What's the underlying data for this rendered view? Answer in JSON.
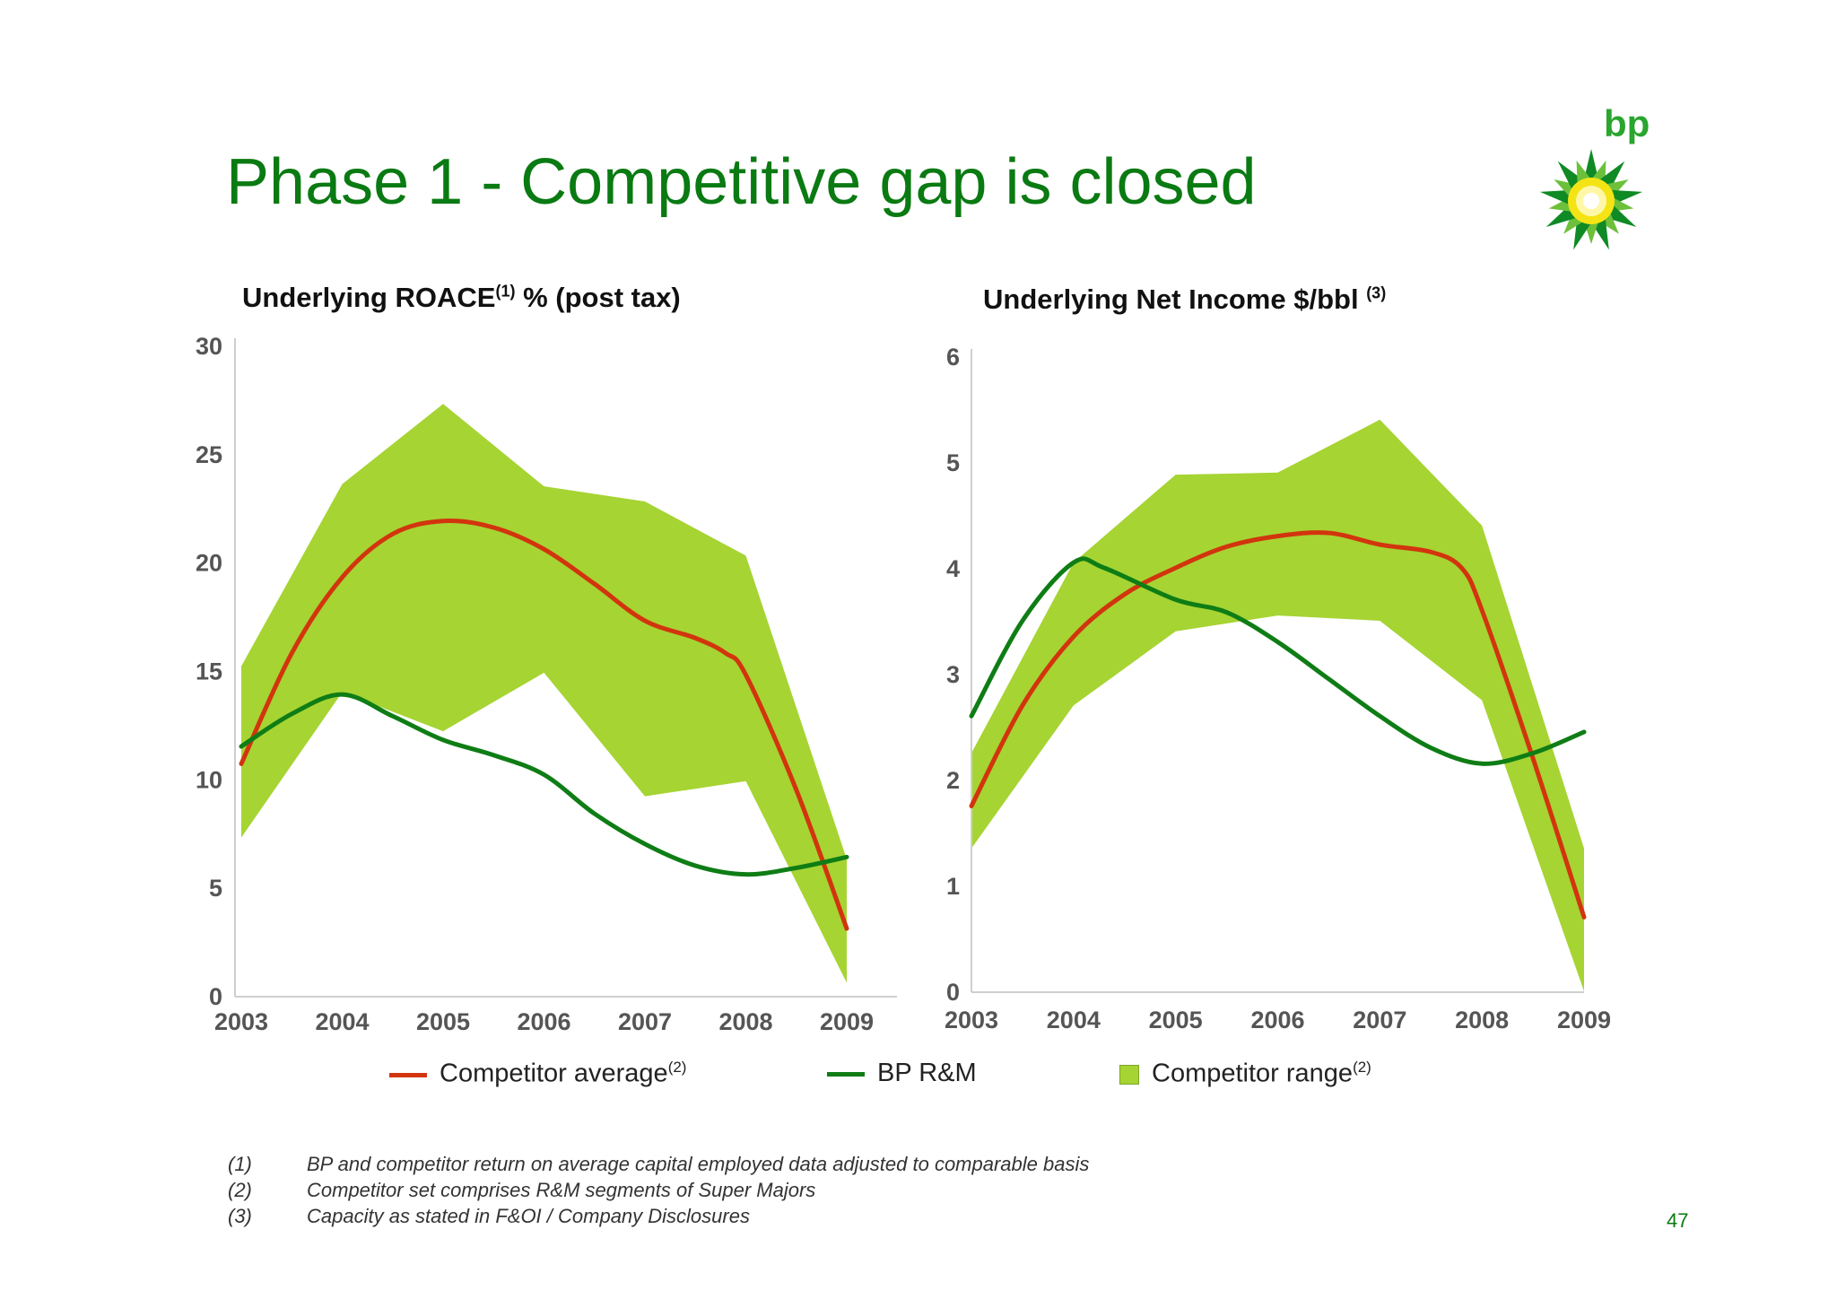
{
  "slide": {
    "title": "Phase 1 - Competitive gap is closed",
    "page_number": "47",
    "brand": "bp"
  },
  "colors": {
    "title_green": "#0a7a12",
    "competitor_average": "#d2350e",
    "bp_rm": "#0f7d15",
    "competitor_range": "#a6d433",
    "axis_label": "#555555"
  },
  "legend": {
    "competitor_average": "Competitor average",
    "competitor_average_note": "(2)",
    "bp_rm": "BP R&M",
    "competitor_range": "Competitor range",
    "competitor_range_note": "(2)"
  },
  "footnotes": [
    {
      "num": "(1)",
      "text": "BP and competitor return on average capital employed data adjusted to comparable basis"
    },
    {
      "num": "(2)",
      "text": "Competitor set comprises R&M segments of Super Majors"
    },
    {
      "num": "(3)",
      "text": "Capacity as stated in F&OI / Company Disclosures"
    }
  ],
  "chart_data": [
    {
      "type": "line",
      "title": "Underlying ROACE",
      "title_note": "(1)",
      "title_suffix": " % (post tax)",
      "categories": [
        "2003",
        "2004",
        "2005",
        "2006",
        "2007",
        "2008",
        "2009"
      ],
      "x": [
        2003,
        2004,
        2005,
        2006,
        2007,
        2008,
        2009
      ],
      "ylim": [
        0,
        30
      ],
      "yticks": [
        0,
        5,
        10,
        15,
        20,
        25,
        30
      ],
      "range": {
        "name": "Competitor range",
        "upper": [
          15.2,
          23.6,
          27.3,
          23.5,
          22.8,
          20.3,
          6.3
        ],
        "lower": [
          7.3,
          14.0,
          12.2,
          14.9,
          9.2,
          9.9,
          0.6
        ]
      },
      "series": [
        {
          "name": "Competitor average",
          "points": [
            [
              2003,
              10.7
            ],
            [
              2003.5,
              15.8
            ],
            [
              2004,
              19.3
            ],
            [
              2004.5,
              21.3
            ],
            [
              2005,
              21.9
            ],
            [
              2005.5,
              21.6
            ],
            [
              2006,
              20.6
            ],
            [
              2006.5,
              19.0
            ],
            [
              2007,
              17.3
            ],
            [
              2007.5,
              16.5
            ],
            [
              2007.8,
              15.8
            ],
            [
              2008,
              14.8
            ],
            [
              2008.5,
              9.5
            ],
            [
              2009,
              3.1
            ]
          ]
        },
        {
          "name": "BP R&M",
          "points": [
            [
              2003,
              11.5
            ],
            [
              2003.5,
              13.0
            ],
            [
              2004,
              13.9
            ],
            [
              2004.5,
              12.9
            ],
            [
              2005,
              11.8
            ],
            [
              2005.5,
              11.1
            ],
            [
              2006,
              10.2
            ],
            [
              2006.5,
              8.4
            ],
            [
              2007,
              7.0
            ],
            [
              2007.5,
              6.0
            ],
            [
              2008,
              5.6
            ],
            [
              2008.5,
              5.9
            ],
            [
              2009,
              6.4
            ]
          ]
        }
      ]
    },
    {
      "type": "line",
      "title": "Underlying Net Income $/bbl",
      "title_note": "(3)",
      "title_suffix": "",
      "categories": [
        "2003",
        "2004",
        "2005",
        "2006",
        "2007",
        "2008",
        "2009"
      ],
      "x": [
        2003,
        2004,
        2005,
        2006,
        2007,
        2008,
        2009
      ],
      "ylim": [
        0,
        6
      ],
      "yticks": [
        0,
        1,
        2,
        3,
        4,
        5,
        6
      ],
      "range": {
        "name": "Competitor range",
        "upper": [
          2.25,
          4.05,
          4.88,
          4.9,
          5.4,
          4.4,
          1.35
        ],
        "lower": [
          1.35,
          2.7,
          3.4,
          3.55,
          3.5,
          2.75,
          0.0
        ]
      },
      "series": [
        {
          "name": "Competitor average",
          "points": [
            [
              2003,
              1.75
            ],
            [
              2003.5,
              2.7
            ],
            [
              2004,
              3.35
            ],
            [
              2004.5,
              3.75
            ],
            [
              2005,
              4.0
            ],
            [
              2005.5,
              4.2
            ],
            [
              2006,
              4.3
            ],
            [
              2006.5,
              4.33
            ],
            [
              2007,
              4.22
            ],
            [
              2007.5,
              4.15
            ],
            [
              2007.8,
              4.0
            ],
            [
              2008,
              3.6
            ],
            [
              2008.5,
              2.2
            ],
            [
              2009,
              0.7
            ]
          ]
        },
        {
          "name": "BP R&M",
          "points": [
            [
              2003,
              2.6
            ],
            [
              2003.5,
              3.5
            ],
            [
              2004,
              4.05
            ],
            [
              2004.3,
              4.0
            ],
            [
              2005,
              3.7
            ],
            [
              2005.5,
              3.58
            ],
            [
              2006,
              3.3
            ],
            [
              2006.5,
              2.95
            ],
            [
              2007,
              2.6
            ],
            [
              2007.5,
              2.3
            ],
            [
              2008,
              2.15
            ],
            [
              2008.5,
              2.25
            ],
            [
              2009,
              2.45
            ]
          ]
        }
      ]
    }
  ]
}
